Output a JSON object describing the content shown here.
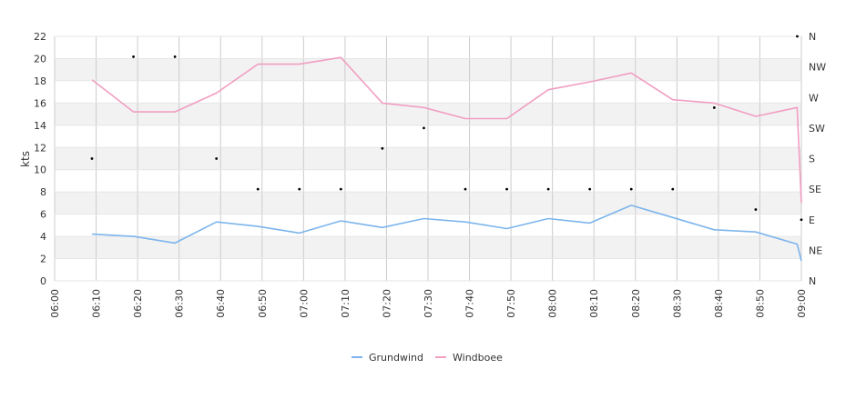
{
  "chart_data": {
    "type": "line",
    "ylabel": "kts",
    "ylim": [
      0,
      22
    ],
    "yticks": [
      0,
      2,
      4,
      6,
      8,
      10,
      12,
      14,
      16,
      18,
      20,
      22
    ],
    "x_range": [
      "06:00",
      "09:00"
    ],
    "x_ticks": [
      "06:00",
      "06:10",
      "06:20",
      "06:30",
      "06:40",
      "06:50",
      "07:00",
      "07:10",
      "07:20",
      "07:30",
      "07:40",
      "07:50",
      "08:00",
      "08:10",
      "08:20",
      "08:30",
      "08:40",
      "08:50",
      "09:00"
    ],
    "direction_axis": {
      "labels": [
        "N",
        "NE",
        "E",
        "SE",
        "S",
        "SW",
        "W",
        "NW",
        "N"
      ],
      "range_deg": [
        0,
        360
      ]
    },
    "grid": true,
    "legend_position": "bottom",
    "series": [
      {
        "name": "Grundwind",
        "color": "#7cb5ec",
        "x": [
          "06:09",
          "06:19",
          "06:29",
          "06:39",
          "06:49",
          "06:59",
          "07:09",
          "07:19",
          "07:29",
          "07:39",
          "07:49",
          "07:59",
          "08:09",
          "08:19",
          "08:29",
          "08:39",
          "08:49",
          "08:59",
          "09:00"
        ],
        "values": [
          4.2,
          4.0,
          3.4,
          5.3,
          4.9,
          4.3,
          5.4,
          4.8,
          5.6,
          5.3,
          4.7,
          5.6,
          5.2,
          6.8,
          5.7,
          4.6,
          4.4,
          3.3,
          1.8
        ]
      },
      {
        "name": "Windboee",
        "color": "#f19ec2",
        "x": [
          "06:09",
          "06:19",
          "06:29",
          "06:39",
          "06:49",
          "06:59",
          "07:09",
          "07:19",
          "07:29",
          "07:39",
          "07:49",
          "07:59",
          "08:09",
          "08:19",
          "08:29",
          "08:39",
          "08:49",
          "08:59",
          "09:00"
        ],
        "values": [
          18.1,
          15.2,
          15.2,
          16.9,
          19.5,
          19.5,
          20.1,
          16.0,
          15.6,
          14.6,
          14.6,
          17.2,
          17.9,
          18.7,
          16.3,
          16.0,
          14.8,
          15.6,
          7.0
        ]
      }
    ],
    "direction_points": {
      "x": [
        "06:09",
        "06:19",
        "06:29",
        "06:39",
        "06:49",
        "06:59",
        "07:09",
        "07:19",
        "07:29",
        "07:39",
        "07:49",
        "07:59",
        "08:09",
        "08:19",
        "08:29",
        "08:39",
        "08:49",
        "08:59",
        "09:00"
      ],
      "degrees": [
        180,
        330,
        330,
        180,
        135,
        135,
        135,
        195,
        225,
        135,
        135,
        135,
        135,
        135,
        135,
        255,
        105,
        360,
        90
      ]
    }
  }
}
